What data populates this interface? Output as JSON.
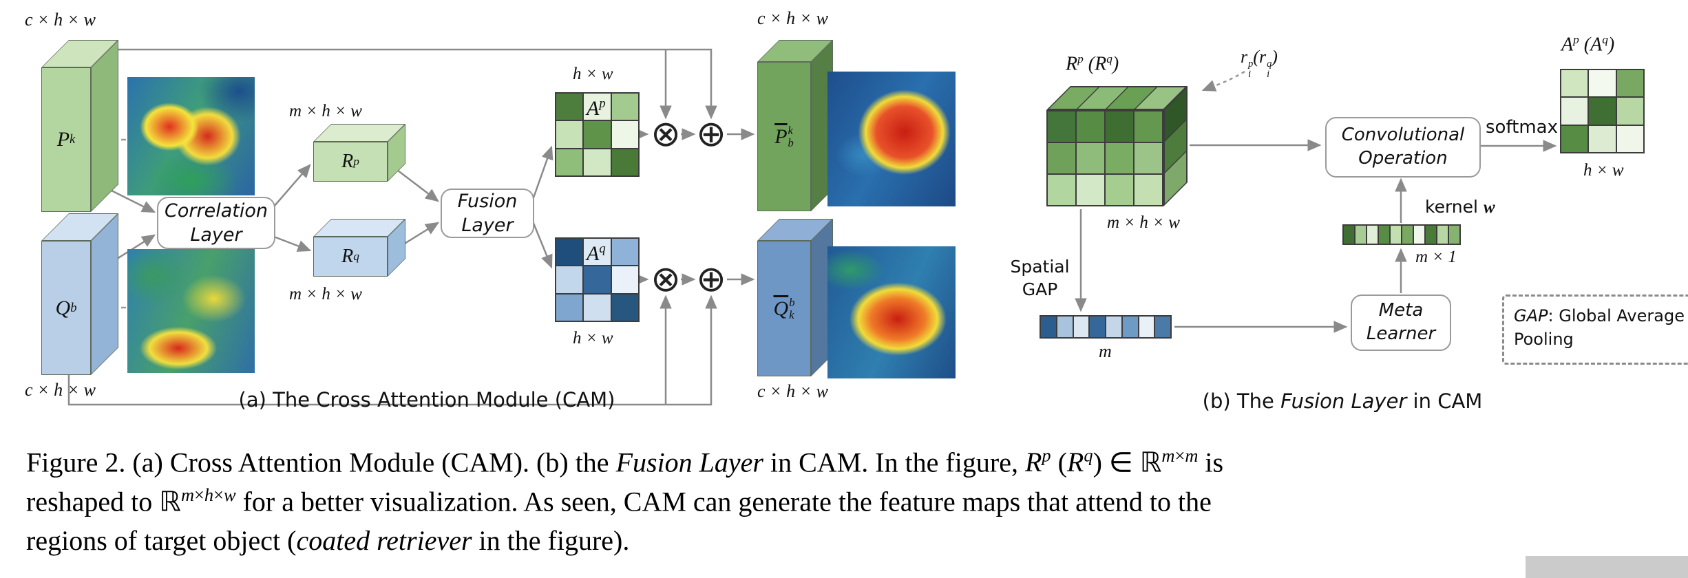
{
  "palette": {
    "arrow": "#8a8a8a",
    "slab_pk": {
      "front": "#b3d5a0",
      "top": "#cde4bc",
      "side": "#8fb87b"
    },
    "slab_qb": {
      "front": "#b9cfe8",
      "top": "#d3e2f2",
      "side": "#93b3d7"
    },
    "box_rp": {
      "front": "#c6e0b5",
      "top": "#dcedcf",
      "side": "#a5ca90"
    },
    "box_rq": {
      "front": "#bfd6ec",
      "top": "#d7e5f4",
      "side": "#9dbddd"
    },
    "slab_pbar": {
      "front": "#73a45d",
      "top": "#90bd7c",
      "side": "#567f45"
    },
    "slab_qbar": {
      "front": "#6f97c6",
      "top": "#8fafd6",
      "side": "#53779e"
    }
  },
  "fig_a": {
    "caption": "(a) The Cross Attention Module (CAM)",
    "dims": {
      "chw_tl": "c × h × w",
      "chw_bl": "c × h × w",
      "chw_tr": "c × h × w",
      "chw_br": "c × h × w",
      "mhw_top": "m × h × w",
      "mhw_bottom": "m × h × w",
      "hw_top": "h × w",
      "hw_bottom": "h × w"
    },
    "tensors": {
      "pk": "P<sup>k</sup>",
      "qb": "Q<sup>b</sup>",
      "rp": "R<sup>p</sup>",
      "rq": "R<sup>q</sup>",
      "ap": "A<sup>p</sup>",
      "aq": "A<sup>q</sup>",
      "pbar": "<span class='bar'>P</span><span class='stack'><span>k</span><span>b</span></span>",
      "qbar": "<span class='bar'>Q</span><span class='stack'><span>b</span><span>k</span></span>"
    },
    "boxes": {
      "correlation": "Correlation<br>Layer",
      "fusion": "Fusion<br>Layer"
    },
    "ops": {
      "otimes": "⊗",
      "oplus": "⊕"
    },
    "ap_cells": [
      "#4e7e3e",
      "#e7f2df",
      "#a4cb8f",
      "#c6e2b6",
      "#5e9349",
      "#eef6e8",
      "#8fbd7a",
      "#d2e8c5",
      "#4a7a38"
    ],
    "aq_cells": [
      "#1f4e7c",
      "#dde9f4",
      "#8fb3d8",
      "#c3d7ec",
      "#35679a",
      "#ebf1f8",
      "#7ea6cf",
      "#d0dff0",
      "#27567f"
    ]
  },
  "fig_b": {
    "caption": "(b) The <i>Fusion Layer</i> in CAM",
    "labels": {
      "rp_rq": "R<sup>p</sup> (R<sup>q</sup>)",
      "ri": "r<span class='stack'><span>p</span><span>i</span></span>(r<span class='stack'><span>q</span><span>i</span></span>)",
      "mhw": "m × h × w",
      "spatial_gap": "Spatial<br>GAP",
      "m": "m",
      "m1": "m × 1",
      "kernel": "kernel <span class='mathw'>w</span>",
      "softmax": "softmax",
      "ap_aq": "A<sup>p</sup> (A<sup>q</sup>)",
      "hw": "h × w"
    },
    "boxes": {
      "conv": "Convolutional<br>Operation",
      "meta": "Meta<br>Learner"
    },
    "legend": "<i>GAP</i>: Global Average<br>Pooling",
    "cube": {
      "top": [
        "#79ab63",
        "#8cba77",
        "#6aa054",
        "#98c384"
      ],
      "side": [
        "#2f5727",
        "#4d7c3c",
        "#7fa96a"
      ],
      "front": [
        "#44753a",
        "#578c44",
        "#3f6e33",
        "#65984f",
        "#6fa15a",
        "#8fbc7a",
        "#7aac64",
        "#9cc489",
        "#b2d6a0",
        "#d3e8c6",
        "#a5cd90",
        "#c4e0b3"
      ]
    },
    "m_vector": [
      "#2c5d8f",
      "#a9c3dd",
      "#dce7f2",
      "#35679a",
      "#c5d6e9",
      "#6f9ac6",
      "#eaf0f7",
      "#4a7aa8"
    ],
    "kernel_vector": [
      "#3f6f33",
      "#a8cd94",
      "#e2efd8",
      "#568c43",
      "#c2dfb1",
      "#78a861",
      "#f0f6ea",
      "#4a7a38",
      "#b7d8a5",
      "#86b370"
    ],
    "ap_cells": [
      "#cfe6c0",
      "#f4f9f0",
      "#78a861",
      "#e8f2e0",
      "#3f6f33",
      "#b7d8a5",
      "#568c43",
      "#dcebd1",
      "#f0f7ea"
    ]
  },
  "caption": {
    "lines": [
      "Figure 2. (a) Cross Attention Module (CAM). (b) the <i>Fusion Layer</i> in CAM. In the figure, <i>R<sup>p</sup></i> (<i>R<sup>q</sup></i>) ∈ ℝ<sup><i>m</i>×<i>m</i></sup> is",
      "reshaped to ℝ<sup><i>m</i>×<i>h</i>×<i>w</i></sup> for a better visualization. As seen, CAM can generate the feature maps that attend to the",
      "regions of target object (<i>coated retriever</i> in the figure)."
    ]
  }
}
